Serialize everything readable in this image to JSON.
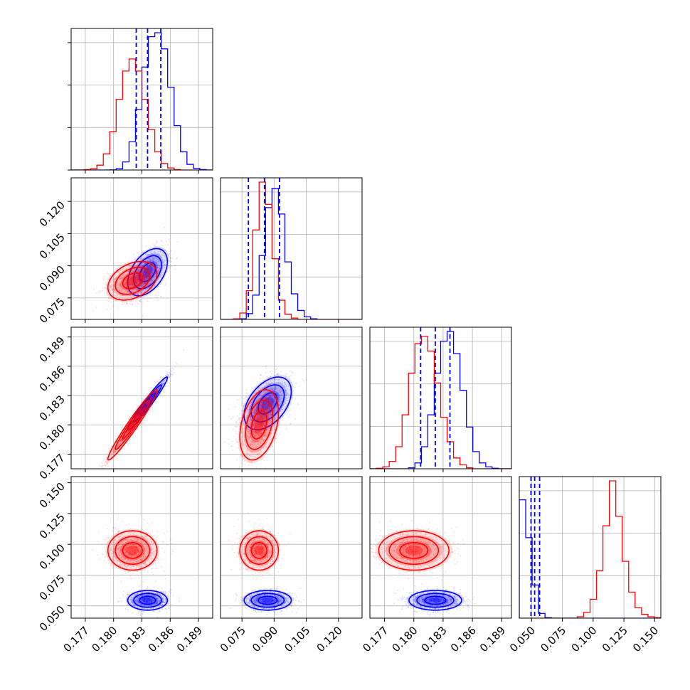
{
  "chart_data": {
    "type": "corner",
    "n_params": 4,
    "grid": true,
    "colors": {
      "series_a": "#0000ff",
      "series_b": "#ff0000"
    },
    "axes": [
      {
        "range": [
          0.1755,
          0.1905
        ],
        "ticks": [
          "0.177",
          "0.180",
          "0.183",
          "0.186",
          "0.189"
        ]
      },
      {
        "range": [
          0.065,
          0.131
        ],
        "ticks": [
          "0.075",
          "0.090",
          "0.105",
          "0.120"
        ]
      },
      {
        "range": [
          0.1755,
          0.19
        ],
        "ticks": [
          "0.177",
          "0.180",
          "0.183",
          "0.186",
          "0.189"
        ]
      },
      {
        "range": [
          0.04,
          0.155
        ],
        "ticks": [
          "0.050",
          "0.075",
          "0.100",
          "0.125",
          "0.150"
        ]
      }
    ],
    "series": [
      {
        "color": "#0000ff",
        "means": [
          0.1836,
          0.087,
          0.1822,
          0.0545
        ],
        "sds": [
          0.00105,
          0.0055,
          0.00135,
          0.004
        ],
        "quantiles": [
          [
            0.1824,
            0.1836,
            0.185
          ],
          [
            0.078,
            0.0855,
            0.0925
          ],
          [
            0.1807,
            0.1822,
            0.1837
          ],
          [
            0.0495,
            0.0525,
            0.0565
          ]
        ],
        "correlations": {
          "0-1": 0.45,
          "0-2": 0.97,
          "1-2": 0.45
        },
        "hist_counts": [
          [
            0,
            0,
            0,
            0,
            0,
            0,
            0.5,
            3,
            20,
            70,
            150,
            255,
            330,
            340,
            300,
            205,
            110,
            45,
            14,
            4,
            1,
            0
          ],
          [
            0,
            0,
            0,
            1,
            9,
            38,
            100,
            175,
            205,
            165,
            90,
            40,
            14,
            4,
            1,
            0,
            0,
            0,
            0,
            0,
            0,
            0
          ],
          [
            0,
            0,
            0,
            0,
            0,
            0,
            2,
            12,
            45,
            110,
            195,
            260,
            280,
            235,
            160,
            85,
            35,
            12,
            4,
            1,
            0,
            0
          ],
          [
            250,
            170,
            70,
            10,
            1,
            0,
            0,
            0,
            0,
            0,
            0,
            0,
            0,
            0,
            0,
            0,
            0,
            0,
            0,
            0,
            0,
            0
          ]
        ]
      },
      {
        "color": "#ff0000",
        "means": [
          0.182,
          0.083,
          0.18,
          0.095
        ],
        "sds": [
          0.0013,
          0.0045,
          0.0018,
          0.008
        ],
        "quantiles": [
          [
            0.1807,
            0.182,
            0.1834
          ],
          [
            0.0785,
            0.083,
            0.0875
          ],
          [
            0.1782,
            0.18,
            0.1818
          ],
          [
            0.087,
            0.095,
            0.103
          ]
        ],
        "correlations": {
          "0-1": 0.35,
          "0-2": 0.97,
          "1-2": 0.35
        },
        "hist_counts": [
          [
            0,
            0,
            1,
            3,
            12,
            40,
            95,
            175,
            245,
            275,
            245,
            175,
            100,
            45,
            16,
            5,
            1,
            0,
            0,
            0,
            0,
            0
          ],
          [
            0,
            0,
            1,
            10,
            45,
            140,
            215,
            180,
            95,
            30,
            8,
            2,
            0,
            0,
            0,
            0,
            0,
            0,
            0,
            0,
            0,
            0
          ],
          [
            0,
            1,
            4,
            15,
            45,
            110,
            195,
            255,
            270,
            240,
            175,
            105,
            55,
            22,
            8,
            2,
            0,
            0,
            0,
            0,
            0,
            0
          ],
          [
            0,
            0,
            0,
            0,
            0,
            0,
            0,
            0,
            0,
            3,
            12,
            40,
            100,
            195,
            290,
            215,
            120,
            55,
            22,
            8,
            3,
            1
          ]
        ]
      }
    ],
    "ylim_hist": [
      0,
      1
    ]
  }
}
